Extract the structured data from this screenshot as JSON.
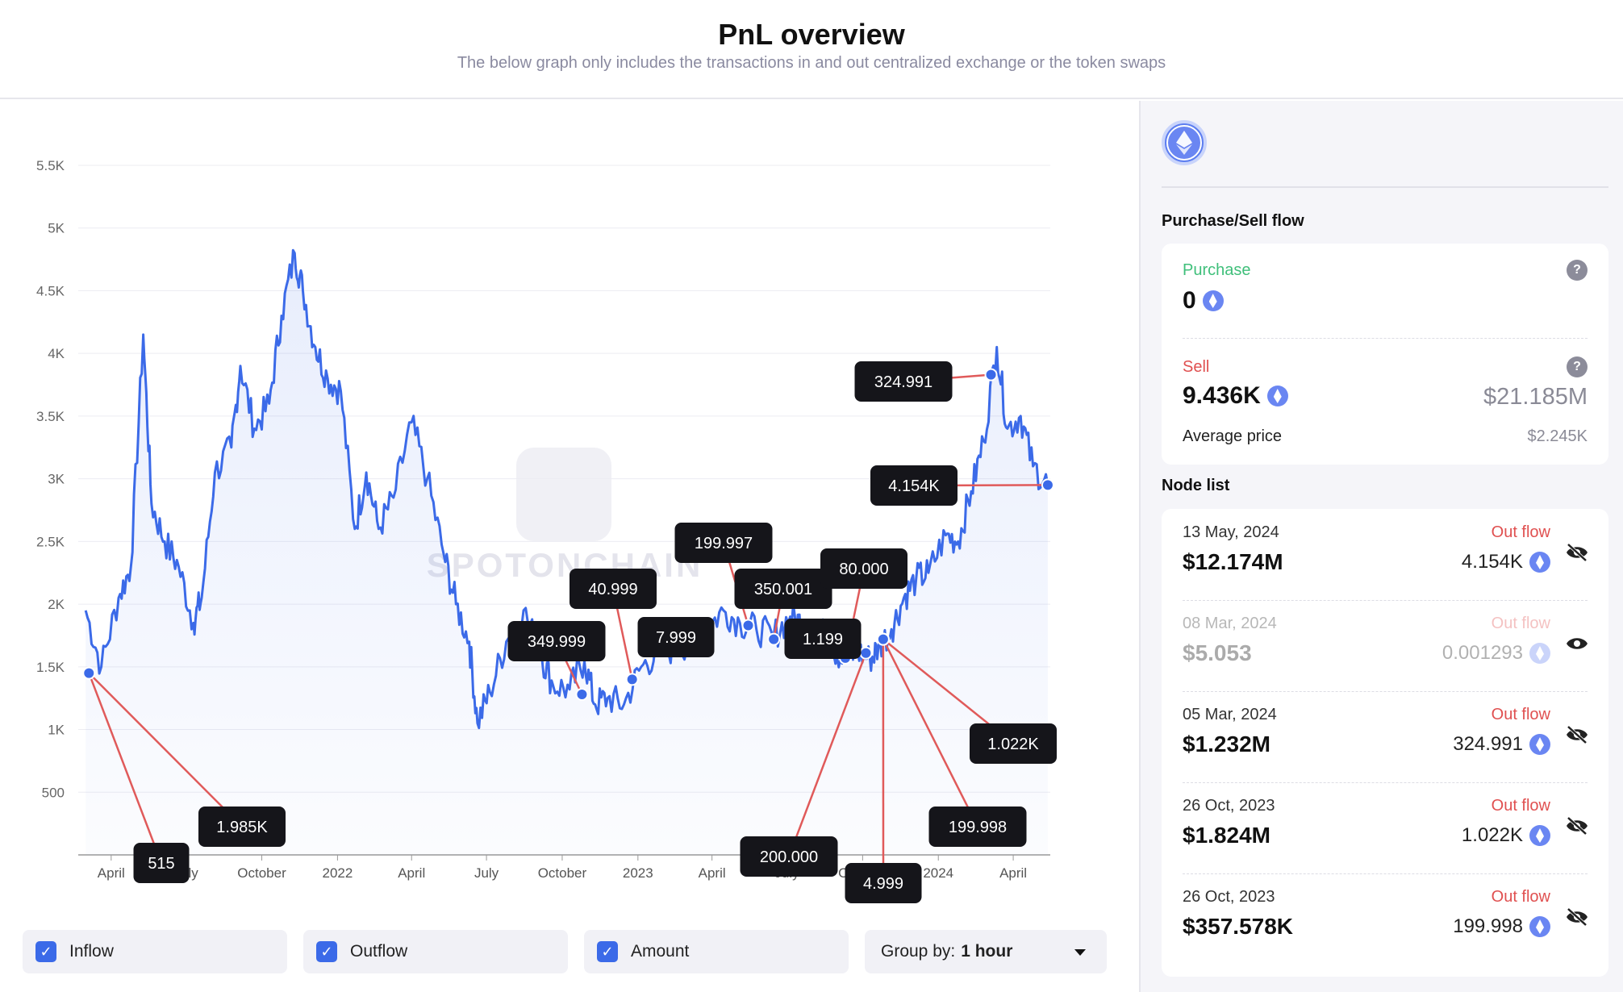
{
  "header": {
    "title": "PnL overview",
    "subtitle": "The below graph only includes the transactions in and out centralized exchange or the token swaps"
  },
  "watermark": "SPOTONCHAIN",
  "filters": {
    "inflow": "Inflow",
    "outflow": "Outflow",
    "amount": "Amount",
    "group_label": "Group by:",
    "group_value": "1 hour"
  },
  "panel": {
    "flow_title": "Purchase/Sell flow",
    "purchase_label": "Purchase",
    "purchase_value": "0",
    "sell_label": "Sell",
    "sell_value": "9.436K",
    "sell_usd": "$21.185M",
    "avg_label": "Average price",
    "avg_value": "$2.245K",
    "node_title": "Node list",
    "nodes": [
      {
        "date": "13 May, 2024",
        "usd": "$12.174M",
        "flow": "Out flow",
        "amount": "4.154K",
        "hidden": true
      },
      {
        "date": "08 Mar, 2024",
        "usd": "$5.053",
        "flow": "Out flow",
        "amount": "0.001293",
        "hidden": false
      },
      {
        "date": "05 Mar, 2024",
        "usd": "$1.232M",
        "flow": "Out flow",
        "amount": "324.991",
        "hidden": true
      },
      {
        "date": "26 Oct, 2023",
        "usd": "$1.824M",
        "flow": "Out flow",
        "amount": "1.022K",
        "hidden": true
      },
      {
        "date": "26 Oct, 2023",
        "usd": "$357.578K",
        "flow": "Out flow",
        "amount": "199.998",
        "hidden": true
      }
    ]
  },
  "colors": {
    "line": "#3b6ae8",
    "callout_line": "#e05a5a",
    "outflow": "#e05050",
    "inflow": "#3fbf7a"
  },
  "chart_data": {
    "type": "line",
    "ylim": [
      0,
      5500
    ],
    "yticks": [
      500,
      1000,
      1500,
      2000,
      2500,
      3000,
      3500,
      4000,
      4500,
      5000,
      5500
    ],
    "ytick_labels": [
      "500",
      "1K",
      "1.5K",
      "2K",
      "2.5K",
      "3K",
      "3.5K",
      "4K",
      "4.5K",
      "5K",
      "5.5K"
    ],
    "xtick_labels": [
      "April",
      "July",
      "October",
      "2022",
      "April",
      "July",
      "October",
      "2023",
      "April",
      "July",
      "October",
      "2024",
      "April"
    ],
    "series": [
      {
        "x": [
          "2021-03-01",
          "2021-03-20",
          "2021-04-10",
          "2021-04-25",
          "2021-05-10",
          "2021-05-20",
          "2021-06-05",
          "2021-06-22",
          "2021-07-10",
          "2021-07-20",
          "2021-08-05",
          "2021-08-25",
          "2021-09-05",
          "2021-09-22",
          "2021-10-10",
          "2021-10-25",
          "2021-11-10",
          "2021-11-20",
          "2021-12-05",
          "2021-12-20",
          "2022-01-05",
          "2022-01-22",
          "2022-02-05",
          "2022-02-20",
          "2022-03-10",
          "2022-04-01",
          "2022-04-20",
          "2022-05-10",
          "2022-05-25",
          "2022-06-10",
          "2022-06-20",
          "2022-07-05",
          "2022-07-25",
          "2022-08-15",
          "2022-09-05",
          "2022-09-20",
          "2022-10-10",
          "2022-10-28",
          "2022-11-10",
          "2022-11-25",
          "2022-12-15",
          "2023-01-05",
          "2023-01-25",
          "2023-02-15",
          "2023-03-10",
          "2023-03-25",
          "2023-04-15",
          "2023-05-05",
          "2023-05-25",
          "2023-06-15",
          "2023-07-05",
          "2023-07-20",
          "2023-08-10",
          "2023-08-25",
          "2023-09-10",
          "2023-09-25",
          "2023-10-10",
          "2023-10-20",
          "2023-11-05",
          "2023-11-20",
          "2023-12-05",
          "2023-12-20",
          "2024-01-10",
          "2024-01-25",
          "2024-02-10",
          "2024-02-25",
          "2024-03-12",
          "2024-03-25",
          "2024-04-10",
          "2024-04-25",
          "2024-05-13"
        ],
        "y": [
          1950,
          1500,
          2050,
          2300,
          4150,
          2800,
          2500,
          2300,
          1850,
          2050,
          3050,
          3250,
          3900,
          3400,
          3600,
          4300,
          4800,
          4500,
          4050,
          3800,
          3700,
          2600,
          3050,
          2600,
          2850,
          3450,
          3000,
          2400,
          2000,
          1700,
          1050,
          1300,
          1700,
          1950,
          1600,
          1350,
          1320,
          1550,
          1200,
          1250,
          1200,
          1500,
          1600,
          1650,
          1700,
          1800,
          1950,
          1850,
          1800,
          1750,
          1900,
          1850,
          1800,
          1650,
          1550,
          1620,
          1560,
          1650,
          1800,
          2050,
          2200,
          2250,
          2550,
          2500,
          2900,
          3300,
          4050,
          3400,
          3500,
          3100,
          2950
        ]
      }
    ],
    "nodes": [
      {
        "label": "515",
        "x": "2021-03-05",
        "y": 1450
      },
      {
        "label": "1.985K",
        "x": "2021-03-05",
        "y": 1450
      },
      {
        "label": "349.999",
        "x": "2022-10-25",
        "y": 1280
      },
      {
        "label": "40.999",
        "x": "2022-12-25",
        "y": 1400
      },
      {
        "label": "7.999",
        "x": "2023-03-25",
        "y": 1700
      },
      {
        "label": "199.997",
        "x": "2023-05-15",
        "y": 1830
      },
      {
        "label": "350.001",
        "x": "2023-06-15",
        "y": 1720
      },
      {
        "label": "1.199",
        "x": "2023-08-25",
        "y": 1620
      },
      {
        "label": "80.000",
        "x": "2023-09-10",
        "y": 1570
      },
      {
        "label": "200.000",
        "x": "2023-10-05",
        "y": 1610
      },
      {
        "label": "4.999",
        "x": "2023-10-26",
        "y": 1720
      },
      {
        "label": "1.022K",
        "x": "2023-10-26",
        "y": 1720
      },
      {
        "label": "199.998",
        "x": "2023-10-26",
        "y": 1720
      },
      {
        "label": "324.991",
        "x": "2024-03-05",
        "y": 3830
      },
      {
        "label": "4.154K",
        "x": "2024-05-13",
        "y": 2950
      }
    ]
  }
}
